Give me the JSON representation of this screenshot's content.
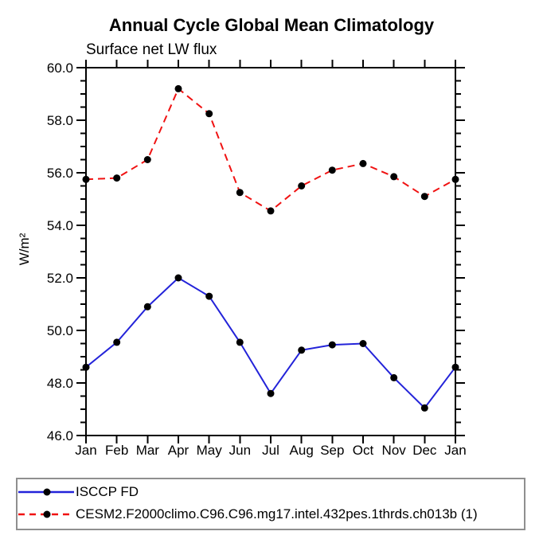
{
  "chart_data": {
    "type": "line",
    "title": "Annual Cycle Global Mean Climatology",
    "subtitle": "Surface net LW flux",
    "xlabel": "",
    "ylabel": "W/m²",
    "categories": [
      "Jan",
      "Feb",
      "Mar",
      "Apr",
      "May",
      "Jun",
      "Jul",
      "Aug",
      "Sep",
      "Oct",
      "Nov",
      "Dec",
      "Jan"
    ],
    "ylim": [
      46.0,
      60.0
    ],
    "ytick_major_interval": 2.0,
    "ytick_minor_interval": 0.5,
    "ytick_labels": [
      "46.0",
      "48.0",
      "50.0",
      "52.0",
      "54.0",
      "56.0",
      "58.0",
      "60.0"
    ],
    "grid": false,
    "legend_position": "bottom",
    "axis_color": "#000000",
    "marker": "filled-circle",
    "marker_color": "#000000",
    "series": [
      {
        "name": "ISCCP FD",
        "color": "#2323d9",
        "line_style": "solid",
        "values": [
          48.6,
          49.55,
          50.9,
          52.0,
          51.3,
          49.55,
          47.6,
          49.25,
          49.45,
          49.5,
          48.2,
          47.05,
          48.6
        ]
      },
      {
        "name": "CESM2.F2000climo.C96.C96.mg17.intel.432pes.1thrds.ch013b (1)",
        "color": "#f01212",
        "line_style": "dashed",
        "values": [
          55.75,
          55.8,
          56.5,
          59.2,
          58.25,
          55.25,
          54.55,
          55.5,
          56.1,
          56.35,
          55.85,
          55.1,
          55.75
        ]
      }
    ]
  }
}
